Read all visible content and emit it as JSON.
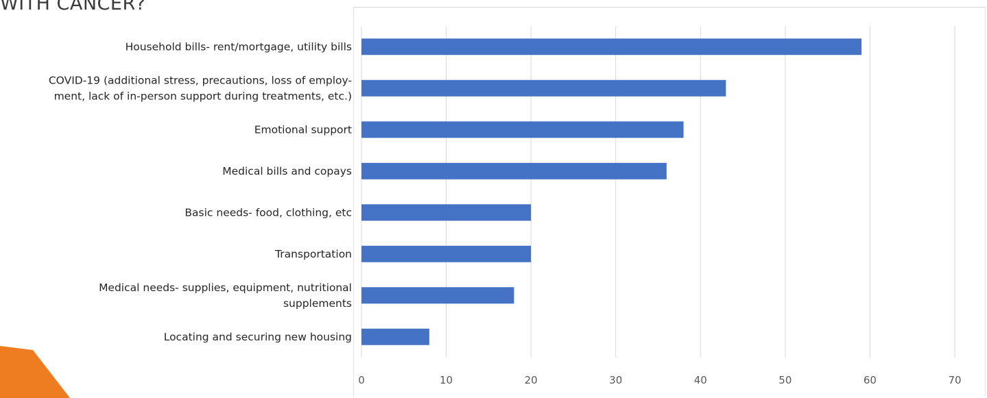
{
  "heading": "WITH CANCER?",
  "colors": {
    "bar": "#4472c4",
    "grid": "#d9d9d9",
    "accent": "#ee7d22"
  },
  "chart_data": {
    "type": "bar",
    "orientation": "horizontal",
    "title": "",
    "xlabel": "",
    "ylabel": "",
    "categories": [
      {
        "label": [
          "Household bills- rent/mortgage, utility bills"
        ]
      },
      {
        "label": [
          "COVID-19 (additional stress, precautions, loss of employ-",
          "ment, lack of in-person support during treatments, etc.)"
        ]
      },
      {
        "label": [
          "Emotional support"
        ]
      },
      {
        "label": [
          "Medical bills and copays"
        ]
      },
      {
        "label": [
          "Basic needs- food, clothing, etc"
        ]
      },
      {
        "label": [
          "Transportation"
        ]
      },
      {
        "label": [
          "Medical needs- supplies, equipment, nutritional",
          "supplements"
        ]
      },
      {
        "label": [
          "Locating and securing new housing"
        ]
      }
    ],
    "values": [
      59,
      43,
      38,
      36,
      20,
      20,
      18,
      8
    ],
    "xlim": [
      0,
      70
    ],
    "xticks": [
      "0",
      "10",
      "20",
      "30",
      "40",
      "50",
      "60",
      "70"
    ],
    "grid": "vertical"
  }
}
